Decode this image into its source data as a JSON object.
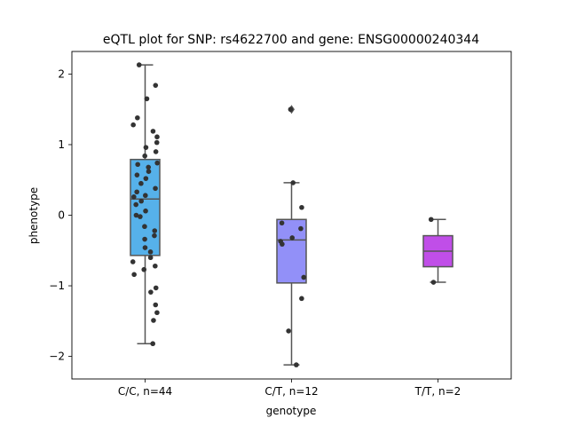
{
  "chart_data": {
    "type": "box",
    "title": "eQTL plot for SNP: rs4622700 and gene: ENSG00000240344",
    "xlabel": "genotype",
    "ylabel": "phenotype",
    "ylim": [
      -2.32,
      2.32
    ],
    "yticks": [
      {
        "value": 2,
        "label": "2"
      },
      {
        "value": 1,
        "label": "1"
      },
      {
        "value": 0,
        "label": "0"
      },
      {
        "value": -1,
        "label": "−1"
      },
      {
        "value": -2,
        "label": "−2"
      }
    ],
    "groups": [
      {
        "label": "C/C, n=44",
        "color": "#56b1ea",
        "box": {
          "q1": -0.57,
          "median": 0.23,
          "q3": 0.79,
          "whisker_low": -1.82,
          "whisker_high": 2.13
        },
        "outliers": [],
        "points": [
          2.13,
          1.84,
          1.65,
          1.38,
          1.28,
          1.19,
          1.11,
          1.03,
          0.96,
          0.9,
          0.84,
          0.74,
          0.68,
          0.62,
          0.57,
          0.52,
          0.45,
          0.38,
          0.33,
          0.28,
          0.2,
          0.15,
          0.06,
          0.0,
          -0.02,
          -0.16,
          -0.22,
          -0.29,
          -0.46,
          -0.52,
          -0.6,
          -0.66,
          -0.72,
          -0.77,
          -0.84,
          -1.03,
          -1.09,
          -1.27,
          -1.38,
          -1.49,
          -1.82,
          0.72,
          0.26,
          -0.34
        ]
      },
      {
        "label": "C/T, n=12",
        "color": "#9290f8",
        "box": {
          "q1": -0.96,
          "median": -0.35,
          "q3": -0.06,
          "whisker_low": -2.12,
          "whisker_high": 0.46
        },
        "outliers": [
          1.5
        ],
        "points": [
          1.5,
          0.46,
          0.11,
          -0.11,
          -0.19,
          -0.32,
          -0.37,
          -0.41,
          -0.88,
          -1.18,
          -1.64,
          -2.12
        ]
      },
      {
        "label": "T/T, n=2",
        "color": "#c04ee8",
        "box": {
          "q1": -0.73,
          "median": -0.51,
          "q3": -0.29,
          "whisker_low": -0.95,
          "whisker_high": -0.06
        },
        "outliers": [],
        "points": [
          -0.06,
          -0.95
        ]
      }
    ]
  }
}
